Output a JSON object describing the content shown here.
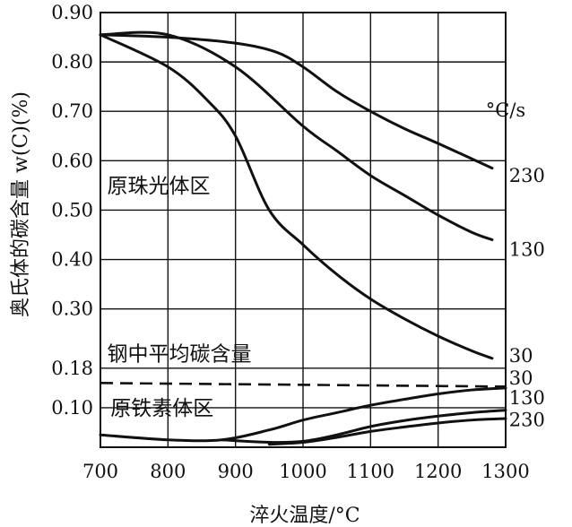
{
  "chart_data": {
    "type": "line",
    "xlabel": "淬火温度/°C",
    "ylabel": "奥氏体的碳含量 w(C)(%)",
    "xlim": [
      700,
      1300
    ],
    "ylim": [
      0.02,
      0.9
    ],
    "x_ticks": [
      700,
      800,
      900,
      1000,
      1100,
      1200,
      1300
    ],
    "x_tick_labels": [
      "700",
      "800",
      "900",
      "1000",
      "1100",
      "1200",
      "1300"
    ],
    "y_ticks": [
      0.1,
      0.18,
      0.3,
      0.4,
      0.5,
      0.6,
      0.7,
      0.8,
      0.9
    ],
    "y_tick_labels": [
      "0.10",
      "0.18",
      "0.30",
      "0.40",
      "0.50",
      "0.60",
      "0.70",
      "0.80",
      "0.90"
    ],
    "grid": true,
    "unit_label": "°C/s",
    "regions": [
      {
        "label": "原珠光体区",
        "x": 710,
        "y": 0.55
      },
      {
        "label": "钢中平均碳含量",
        "x": 710,
        "y": 0.21
      },
      {
        "label": "原铁素体区",
        "x": 715,
        "y": 0.1
      }
    ],
    "reference_line": {
      "name": "钢中平均碳含量",
      "y": 0.15,
      "style": "dashed"
    },
    "series": [
      {
        "name": "230",
        "group": "pearlite",
        "x": [
          700,
          800,
          900,
          960,
          1000,
          1050,
          1100,
          1150,
          1200,
          1280
        ],
        "y": [
          0.855,
          0.85,
          0.838,
          0.82,
          0.79,
          0.74,
          0.7,
          0.665,
          0.635,
          0.585
        ]
      },
      {
        "name": "130",
        "group": "pearlite",
        "x": [
          700,
          800,
          900,
          1000,
          1050,
          1100,
          1150,
          1200,
          1250,
          1280
        ],
        "y": [
          0.855,
          0.855,
          0.79,
          0.67,
          0.62,
          0.57,
          0.53,
          0.49,
          0.455,
          0.44
        ]
      },
      {
        "name": "30",
        "group": "pearlite",
        "x": [
          700,
          800,
          860,
          900,
          950,
          1000,
          1050,
          1100,
          1150,
          1200,
          1250,
          1280
        ],
        "y": [
          0.855,
          0.79,
          0.72,
          0.65,
          0.5,
          0.43,
          0.37,
          0.32,
          0.28,
          0.245,
          0.215,
          0.2
        ]
      },
      {
        "name": "30",
        "group": "ferrite",
        "x": [
          700,
          800,
          880,
          950,
          1000,
          1050,
          1100,
          1150,
          1200,
          1250,
          1300
        ],
        "y": [
          0.045,
          0.035,
          0.035,
          0.055,
          0.075,
          0.09,
          0.105,
          0.117,
          0.128,
          0.136,
          0.14
        ]
      },
      {
        "name": "130",
        "group": "ferrite",
        "x": [
          880,
          950,
          1000,
          1050,
          1100,
          1150,
          1200,
          1250,
          1300
        ],
        "y": [
          0.035,
          0.03,
          0.032,
          0.045,
          0.062,
          0.074,
          0.083,
          0.09,
          0.095
        ]
      },
      {
        "name": "230",
        "group": "ferrite",
        "x": [
          950,
          1000,
          1050,
          1100,
          1150,
          1200,
          1250,
          1300
        ],
        "y": [
          0.026,
          0.03,
          0.04,
          0.052,
          0.061,
          0.069,
          0.075,
          0.078
        ]
      }
    ],
    "series_labels": [
      {
        "text": "230",
        "at": [
          1305,
          0.57
        ]
      },
      {
        "text": "130",
        "at": [
          1305,
          0.42
        ]
      },
      {
        "text": "30",
        "at": [
          1305,
          0.205
        ]
      },
      {
        "text": "30",
        "at": [
          1305,
          0.16
        ]
      },
      {
        "text": "130",
        "at": [
          1305,
          0.12
        ]
      },
      {
        "text": "230",
        "at": [
          1305,
          0.075
        ]
      }
    ]
  }
}
